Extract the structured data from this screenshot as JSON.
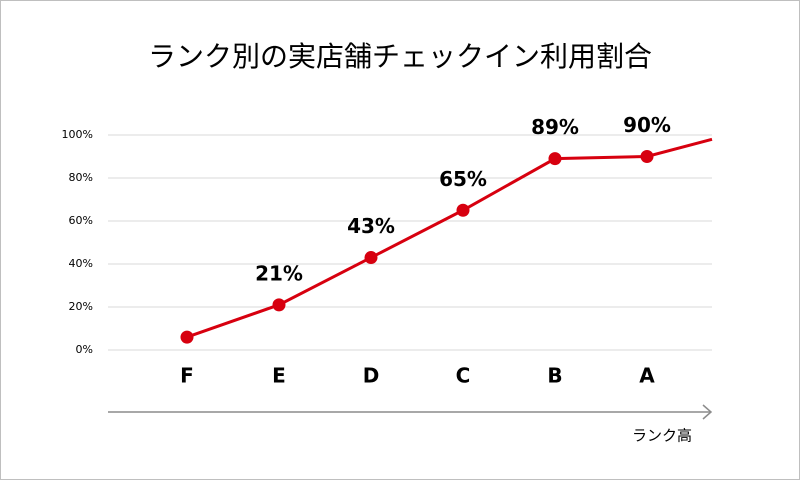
{
  "chart_data": {
    "type": "line",
    "title": "ランク別の実店舗チェックイン利用割合",
    "x_axis_label": "ランク高",
    "categories": [
      "F",
      "E",
      "D",
      "C",
      "B",
      "A",
      null
    ],
    "series": [
      {
        "name": null,
        "color": "#d7000f",
        "values": [
          6,
          21,
          43,
          65,
          89,
          90,
          98
        ],
        "value_labels": [
          null,
          "21%",
          "43%",
          "65%",
          "89%",
          "90%",
          null
        ]
      }
    ],
    "ylim": [
      0,
      100
    ],
    "yticks": [
      {
        "value": 0,
        "label": "0%"
      },
      {
        "value": 20,
        "label": "20%"
      },
      {
        "value": 40,
        "label": "40%"
      },
      {
        "value": 60,
        "label": "60%"
      },
      {
        "value": 80,
        "label": "80%"
      },
      {
        "value": 100,
        "label": "100%"
      }
    ],
    "grid": true
  }
}
